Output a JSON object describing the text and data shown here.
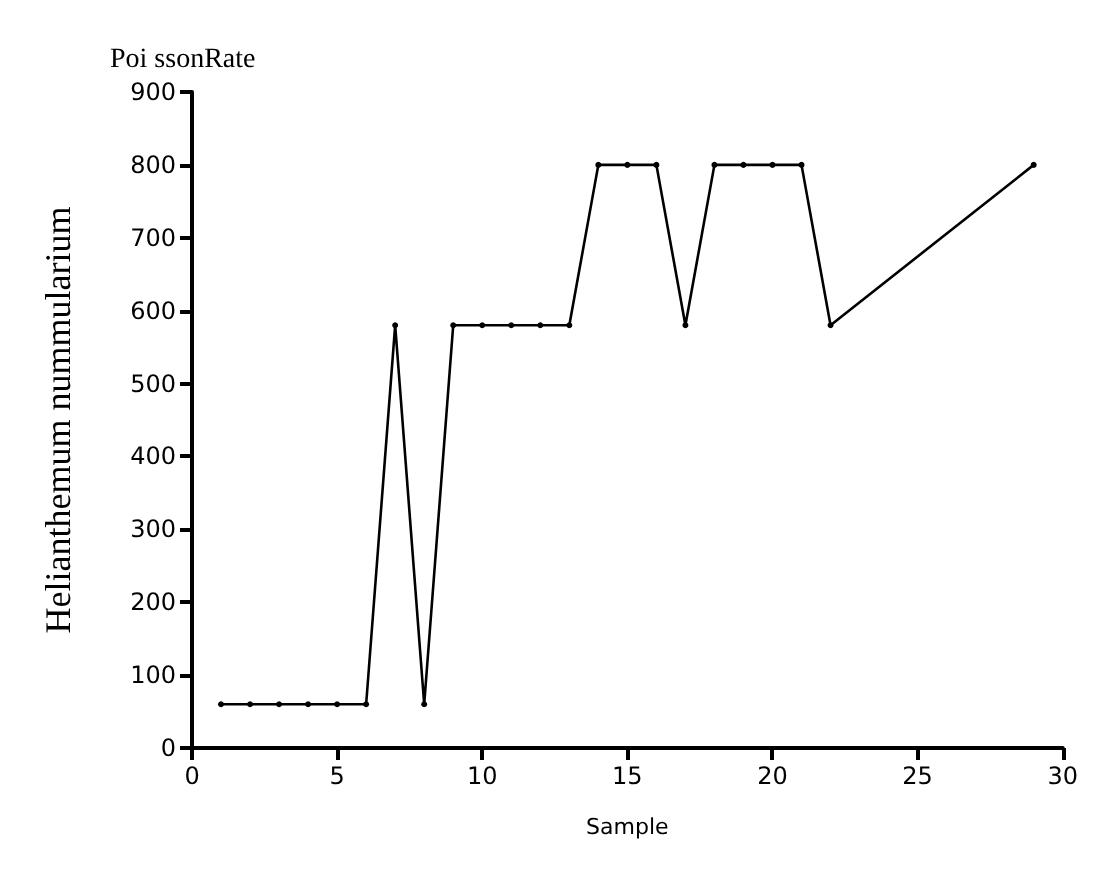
{
  "chart_data": {
    "type": "line",
    "title": "Poi ssonRate",
    "xlabel": "Sample",
    "ylabel": "Helianthemum nummularium",
    "x": [
      1,
      2,
      3,
      4,
      5,
      6,
      7,
      8,
      9,
      10,
      11,
      12,
      13,
      14,
      15,
      16,
      17,
      18,
      19,
      20,
      21,
      22,
      29
    ],
    "values": [
      60,
      60,
      60,
      60,
      60,
      60,
      580,
      60,
      580,
      580,
      580,
      580,
      580,
      800,
      800,
      800,
      580,
      800,
      800,
      800,
      800,
      580,
      800
    ],
    "color": "#000000",
    "xlim": [
      0,
      30
    ],
    "xticks": [
      0,
      5,
      10,
      15,
      20,
      25,
      30
    ],
    "ylim": [
      0,
      900
    ],
    "yticks": [
      0,
      100,
      200,
      300,
      400,
      500,
      600,
      700,
      800,
      900
    ],
    "marker": "circle",
    "line_style": "solid",
    "grid": false
  }
}
